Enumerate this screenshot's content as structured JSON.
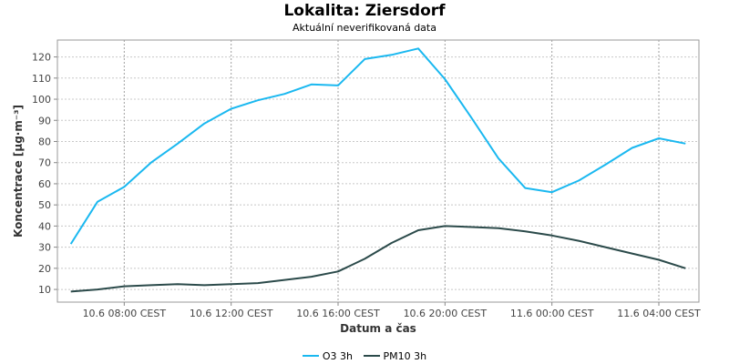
{
  "chart_data": {
    "type": "line",
    "title": "Lokalita: Ziersdorf",
    "subtitle": "Aktuální neverifikovaná data",
    "xlabel": "Datum a čas",
    "ylabel": "Koncentrace [µg·m⁻³]",
    "x_tick_labels": [
      "10.6 08:00 CEST",
      "10.6 12:00 CEST",
      "10.6 16:00 CEST",
      "10.6 20:00 CEST",
      "11.6 00:00 CEST",
      "11.6 04:00 CEST"
    ],
    "x_tick_hours": [
      7,
      11,
      15,
      19,
      23,
      27
    ],
    "x_hours": [
      5,
      6,
      7,
      8,
      9,
      10,
      11,
      12,
      13,
      14,
      15,
      16,
      17,
      18,
      19,
      20,
      21,
      22,
      23,
      24,
      25,
      26,
      27,
      28
    ],
    "xlim": [
      4.5,
      28.5
    ],
    "ylim": [
      4,
      128
    ],
    "yticks": [
      10,
      20,
      30,
      40,
      50,
      60,
      70,
      80,
      90,
      100,
      110,
      120
    ],
    "grid": true,
    "legend_position": "bottom",
    "series": [
      {
        "name": "O3 3h",
        "color": "#1ab8f0",
        "values": [
          31.5,
          51.5,
          58.5,
          70,
          79,
          88.5,
          95.5,
          99.5,
          102.5,
          107,
          106.5,
          119,
          121,
          124,
          109.5,
          91,
          72,
          58,
          56,
          61.5,
          69,
          77,
          81.5,
          79
        ]
      },
      {
        "name": "PM10 3h",
        "color": "#2b4a4a",
        "values": [
          9,
          10,
          11.5,
          12,
          12.5,
          12,
          12.5,
          13,
          14.5,
          16,
          18.5,
          24.5,
          32,
          38,
          40,
          39.5,
          39,
          37.5,
          35.5,
          33,
          30,
          27,
          24,
          20
        ]
      }
    ]
  }
}
